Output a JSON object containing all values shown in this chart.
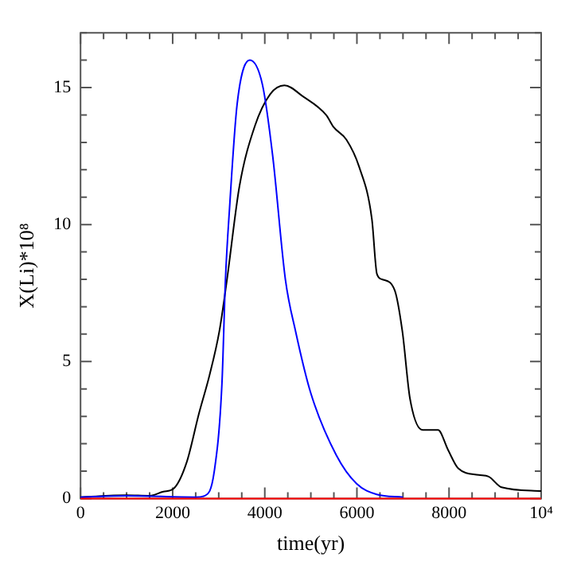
{
  "chart_data": {
    "type": "line",
    "xlabel": "time(yr)",
    "ylabel": "X(Li)*10⁸",
    "xlim": [
      0,
      10000
    ],
    "ylim": [
      0,
      17
    ],
    "xticks": [
      0,
      {
        "value": 500,
        "label": null
      },
      {
        "value": 1000,
        "label": null
      },
      {
        "value": 1500,
        "label": null
      },
      2000,
      {
        "value": 2500,
        "label": null
      },
      {
        "value": 3000,
        "label": null
      },
      {
        "value": 3500,
        "label": null
      },
      4000,
      {
        "value": 4500,
        "label": null
      },
      {
        "value": 5000,
        "label": null
      },
      {
        "value": 5500,
        "label": null
      },
      6000,
      {
        "value": 6500,
        "label": null
      },
      {
        "value": 7000,
        "label": null
      },
      {
        "value": 7500,
        "label": null
      },
      8000,
      {
        "value": 8500,
        "label": null
      },
      {
        "value": 9000,
        "label": null
      },
      {
        "value": 9500,
        "label": null
      },
      {
        "value": 10000,
        "label": "10⁴"
      }
    ],
    "yticks": [
      0,
      {
        "value": 1,
        "label": null
      },
      {
        "value": 2,
        "label": null
      },
      {
        "value": 3,
        "label": null
      },
      {
        "value": 4,
        "label": null
      },
      5,
      {
        "value": 6,
        "label": null
      },
      {
        "value": 7,
        "label": null
      },
      {
        "value": 8,
        "label": null
      },
      {
        "value": 9,
        "label": null
      },
      10,
      {
        "value": 11,
        "label": null
      },
      {
        "value": 12,
        "label": null
      },
      {
        "value": 13,
        "label": null
      },
      {
        "value": 14,
        "label": null
      },
      15,
      {
        "value": 16,
        "label": null
      },
      {
        "value": 17,
        "label": null
      }
    ],
    "marker": "none",
    "line_style": "solid",
    "legend": false,
    "series": [
      {
        "color": "#000000",
        "x": [
          0,
          1000,
          1500,
          1800,
          2020,
          2300,
          2570,
          2800,
          3013,
          3180,
          3450,
          3785,
          4117,
          4426,
          4834,
          5331,
          5497,
          5772,
          6050,
          6325,
          6434,
          6545,
          6821,
          6987,
          7152,
          7428,
          7760,
          7980,
          8200,
          8642,
          8860,
          9139,
          10000
        ],
        "values": [
          0.05,
          0.12,
          0.1,
          0.25,
          0.36,
          1.3,
          3.1,
          4.5,
          6.1,
          8.0,
          11.4,
          13.6,
          14.76,
          15.08,
          14.67,
          14.0,
          13.55,
          13.1,
          12.1,
          10.2,
          8.2,
          8.0,
          7.6,
          6.1,
          3.65,
          2.5,
          2.5,
          1.77,
          1.1,
          0.86,
          0.8,
          0.41,
          0.27
        ]
      },
      {
        "color": "#0000ff",
        "x": [
          0,
          1000,
          2500,
          2700,
          2904,
          3070,
          3146,
          3235,
          3400,
          3675,
          3950,
          4172,
          4447,
          4669,
          5000,
          5553,
          5993,
          6430,
          7000
        ],
        "values": [
          0.05,
          0.1,
          0.05,
          0.1,
          1.0,
          4.2,
          8.0,
          10.6,
          14.4,
          16.0,
          15.1,
          12.5,
          8.0,
          6.1,
          3.84,
          1.58,
          0.54,
          0.15,
          0.05
        ]
      },
      {
        "color": "#ff0000",
        "x": [
          0,
          10000
        ],
        "values": [
          0,
          0
        ]
      }
    ]
  }
}
